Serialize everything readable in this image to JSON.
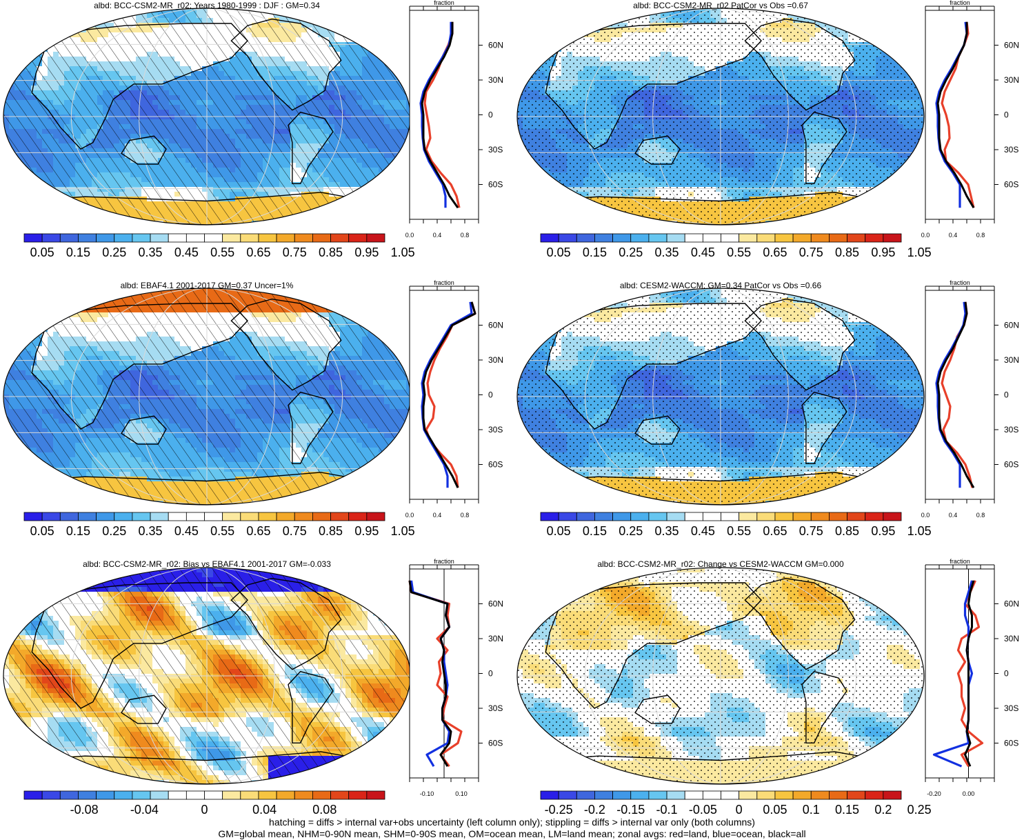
{
  "palette": {
    "seq": [
      "#2a1fe8",
      "#3a48e6",
      "#3f66de",
      "#3f80e0",
      "#3f98e8",
      "#4bb0ee",
      "#66c6f0",
      "#a6dcf2",
      "#ffffff",
      "#ffffff",
      "#fbe9a0",
      "#fadc78",
      "#f7c540",
      "#f3a92a",
      "#ef8a1e",
      "#e86a16",
      "#e2461a",
      "#da2418",
      "#c8141a"
    ],
    "div": [
      "#2a1fe8",
      "#3a48e6",
      "#3f66de",
      "#3f80e0",
      "#3f98e8",
      "#4bb0ee",
      "#66c6f0",
      "#a6dcf2",
      "#ffffff",
      "#ffffff",
      "#fbe9a0",
      "#fadc78",
      "#f7c540",
      "#f3a92a",
      "#ef8a1e",
      "#e86a16",
      "#e2461a",
      "#da2418",
      "#c8141a"
    ],
    "land": "#e8402a",
    "ocean": "#1230e0",
    "all": "#000000"
  },
  "footer": {
    "line1": "hatching = diffs > internal var+obs uncertainty (left column only); stippling = diffs > internal var only (both columns)",
    "line2": "GM=global mean, NHM=0-90N mean, SHM=0-90S mean, OM=ocean mean, LM=land mean; zonal avgs: red=land, blue=ocean, black=all"
  },
  "chart_data": [
    {
      "type": "heatmap",
      "title": "albd: BCC-CSM2-MR_r02: Years 1980-1999 : DJF : GM=0.34",
      "colorbar_labels": [
        "0.05",
        "0.15",
        "0.25",
        "0.35",
        "0.45",
        "0.55",
        "0.65",
        "0.75",
        "0.85",
        "0.95",
        "1.05"
      ],
      "pattern": "hatch",
      "field": "mean",
      "zonal": {
        "xlabel": "fraction",
        "xticks": [
          "0.0",
          "0.4",
          "0.8"
        ],
        "xlim": [
          0,
          1.0
        ],
        "lat_labels": [
          "60N",
          "30N",
          "0",
          "30S",
          "60S"
        ],
        "lat": [
          80,
          70,
          60,
          50,
          40,
          30,
          20,
          10,
          0,
          -10,
          -20,
          -30,
          -40,
          -50,
          -60,
          -70,
          -80
        ],
        "all": [
          0.62,
          0.62,
          0.58,
          0.5,
          0.4,
          0.3,
          0.22,
          0.18,
          0.2,
          0.2,
          0.2,
          0.22,
          0.3,
          0.4,
          0.5,
          0.58,
          0.7
        ],
        "land": [
          0.62,
          0.62,
          0.56,
          0.48,
          0.42,
          0.34,
          0.24,
          0.22,
          0.25,
          0.28,
          0.3,
          0.24,
          0.32,
          0.45,
          0.6,
          0.68,
          0.72
        ],
        "ocean": [
          0.6,
          0.6,
          0.57,
          0.48,
          0.38,
          0.28,
          0.2,
          0.16,
          0.18,
          0.18,
          0.19,
          0.21,
          0.28,
          0.38,
          0.48,
          0.52,
          0.52
        ]
      }
    },
    {
      "type": "heatmap",
      "title": "albd: BCC-CSM2-MR_r02 PatCor vs Obs =0.67",
      "colorbar_labels": [
        "0.05",
        "0.15",
        "0.25",
        "0.35",
        "0.45",
        "0.55",
        "0.65",
        "0.75",
        "0.85",
        "0.95",
        "1.05"
      ],
      "pattern": "stipple",
      "field": "mean",
      "zonal": {
        "xlabel": "fraction",
        "xticks": [
          "0.0",
          "0.4",
          "0.8"
        ],
        "xlim": [
          0,
          1.0
        ],
        "lat_labels": [
          "60N",
          "30N",
          "0",
          "30S",
          "60S"
        ],
        "lat": [
          80,
          70,
          60,
          50,
          40,
          30,
          20,
          10,
          0,
          -10,
          -20,
          -30,
          -40,
          -50,
          -60,
          -70,
          -80
        ],
        "all": [
          0.6,
          0.6,
          0.56,
          0.48,
          0.4,
          0.3,
          0.22,
          0.18,
          0.2,
          0.2,
          0.2,
          0.22,
          0.3,
          0.42,
          0.52,
          0.6,
          0.7
        ],
        "land": [
          0.6,
          0.62,
          0.56,
          0.48,
          0.44,
          0.36,
          0.28,
          0.24,
          0.3,
          0.34,
          0.35,
          0.28,
          0.3,
          0.48,
          0.62,
          0.66,
          0.7
        ],
        "ocean": [
          0.58,
          0.6,
          0.56,
          0.47,
          0.38,
          0.28,
          0.2,
          0.16,
          0.18,
          0.18,
          0.19,
          0.21,
          0.28,
          0.4,
          0.5,
          0.5,
          0.5
        ]
      }
    },
    {
      "type": "heatmap",
      "title": "albd: EBAF4.1 2001-2017 GM=0.37 Uncer=1%",
      "colorbar_labels": [
        "0.05",
        "0.15",
        "0.25",
        "0.35",
        "0.45",
        "0.55",
        "0.65",
        "0.75",
        "0.85",
        "0.95",
        "1.05"
      ],
      "pattern": "hatch",
      "field": "obs",
      "zonal": {
        "xlabel": "fraction",
        "xticks": [
          "0.0",
          "0.4",
          "0.8"
        ],
        "xlim": [
          0,
          1.0
        ],
        "lat_labels": [
          "60N",
          "30N",
          "0",
          "30S",
          "60S"
        ],
        "lat": [
          80,
          70,
          60,
          50,
          40,
          30,
          20,
          10,
          0,
          -10,
          -20,
          -30,
          -40,
          -50,
          -60,
          -70,
          -80
        ],
        "all": [
          0.9,
          0.95,
          0.62,
          0.52,
          0.42,
          0.32,
          0.24,
          0.2,
          0.22,
          0.2,
          0.2,
          0.22,
          0.32,
          0.42,
          0.52,
          0.62,
          0.7
        ],
        "land": [
          0.9,
          0.95,
          0.62,
          0.54,
          0.44,
          0.36,
          0.3,
          0.26,
          0.28,
          0.36,
          0.34,
          0.24,
          0.3,
          0.44,
          0.6,
          0.68,
          0.7
        ],
        "ocean": [
          0.88,
          0.9,
          0.6,
          0.5,
          0.4,
          0.3,
          0.22,
          0.18,
          0.2,
          0.18,
          0.19,
          0.21,
          0.3,
          0.4,
          0.5,
          0.55,
          0.55
        ]
      }
    },
    {
      "type": "heatmap",
      "title": "albd: CESM2-WACCM: GM=0.34 PatCor vs Obs =0.66",
      "colorbar_labels": [
        "0.05",
        "0.15",
        "0.25",
        "0.35",
        "0.45",
        "0.55",
        "0.65",
        "0.75",
        "0.85",
        "0.95",
        "1.05"
      ],
      "pattern": "stipple",
      "field": "mean",
      "zonal": {
        "xlabel": "fraction",
        "xticks": [
          "0.0",
          "0.4",
          "0.8"
        ],
        "xlim": [
          0,
          1.0
        ],
        "lat_labels": [
          "60N",
          "30N",
          "0",
          "30S",
          "60S"
        ],
        "lat": [
          80,
          70,
          60,
          50,
          40,
          30,
          20,
          10,
          0,
          -10,
          -20,
          -30,
          -40,
          -50,
          -60,
          -70,
          -80
        ],
        "all": [
          0.58,
          0.6,
          0.56,
          0.48,
          0.4,
          0.3,
          0.22,
          0.18,
          0.2,
          0.2,
          0.2,
          0.22,
          0.3,
          0.42,
          0.52,
          0.6,
          0.7
        ],
        "land": [
          0.58,
          0.6,
          0.56,
          0.46,
          0.42,
          0.36,
          0.28,
          0.24,
          0.3,
          0.36,
          0.34,
          0.26,
          0.3,
          0.46,
          0.58,
          0.64,
          0.68
        ],
        "ocean": [
          0.56,
          0.58,
          0.55,
          0.47,
          0.38,
          0.28,
          0.2,
          0.16,
          0.18,
          0.18,
          0.19,
          0.21,
          0.28,
          0.4,
          0.5,
          0.5,
          0.5
        ]
      }
    },
    {
      "type": "heatmap",
      "title": "albd: BCC-CSM2-MR_r02: Bias vs EBAF4.1 2001-2017 GM=-0.033",
      "colorbar_labels": [
        "-0.08",
        "-0.04",
        "0",
        "0.04",
        "0.08"
      ],
      "pattern": "hatch",
      "field": "bias",
      "zonal": {
        "xlabel": "fraction",
        "xticks": [
          "-0.10",
          "0.10"
        ],
        "xlim": [
          -0.2,
          0.2
        ],
        "lat_labels": [
          "60N",
          "30N",
          "0",
          "30S",
          "60S"
        ],
        "lat": [
          80,
          70,
          60,
          50,
          40,
          30,
          20,
          10,
          0,
          -10,
          -20,
          -30,
          -40,
          -50,
          -60,
          -70,
          -80
        ],
        "all": [
          -0.2,
          -0.19,
          0.02,
          0.01,
          0.03,
          -0.02,
          0.0,
          -0.01,
          0.0,
          0.01,
          0.01,
          -0.01,
          -0.01,
          0.04,
          0.03,
          -0.02,
          0.02
        ],
        "land": [
          -0.2,
          -0.19,
          0.03,
          0.02,
          0.03,
          -0.04,
          0.02,
          -0.03,
          -0.02,
          -0.04,
          0.02,
          0.0,
          -0.01,
          0.1,
          0.08,
          -0.02,
          0.03
        ],
        "ocean": [
          -0.19,
          -0.18,
          0.02,
          0.01,
          0.03,
          -0.02,
          0.0,
          0.0,
          0.01,
          0.02,
          0.01,
          -0.01,
          -0.01,
          0.03,
          0.02,
          -0.1,
          -0.06
        ]
      }
    },
    {
      "type": "heatmap",
      "title": "albd: BCC-CSM2-MR_r02: Change vs CESM2-WACCM GM=0.000",
      "colorbar_labels": [
        "-0.25",
        "-0.2",
        "-0.15",
        "-0.1",
        "-0.05",
        "0",
        "0.05",
        "0.1",
        "0.15",
        "0.2",
        "0.25"
      ],
      "pattern": "stipple",
      "field": "change",
      "zonal": {
        "xlabel": "fraction",
        "xticks": [
          "-0.20",
          "0.00"
        ],
        "xlim": [
          -0.25,
          0.15
        ],
        "lat_labels": [
          "60N",
          "30N",
          "0",
          "30S",
          "60S"
        ],
        "lat": [
          80,
          70,
          60,
          50,
          40,
          30,
          20,
          10,
          0,
          -10,
          -20,
          -30,
          -40,
          -50,
          -60,
          -70,
          -80
        ],
        "all": [
          0.03,
          0.01,
          0.0,
          0.02,
          0.02,
          0.0,
          -0.01,
          0.0,
          0.0,
          0.0,
          0.0,
          0.0,
          0.0,
          -0.01,
          0.01,
          -0.02,
          0.01
        ],
        "land": [
          0.04,
          0.01,
          -0.02,
          0.04,
          0.06,
          -0.04,
          -0.06,
          -0.02,
          -0.06,
          -0.04,
          -0.04,
          -0.02,
          -0.04,
          0.0,
          0.08,
          -0.04,
          0.0
        ],
        "ocean": [
          0.02,
          0.0,
          -0.02,
          -0.02,
          0.0,
          0.0,
          -0.01,
          0.0,
          0.02,
          0.0,
          0.0,
          0.0,
          0.0,
          -0.01,
          0.0,
          -0.2,
          -0.04
        ]
      }
    }
  ]
}
